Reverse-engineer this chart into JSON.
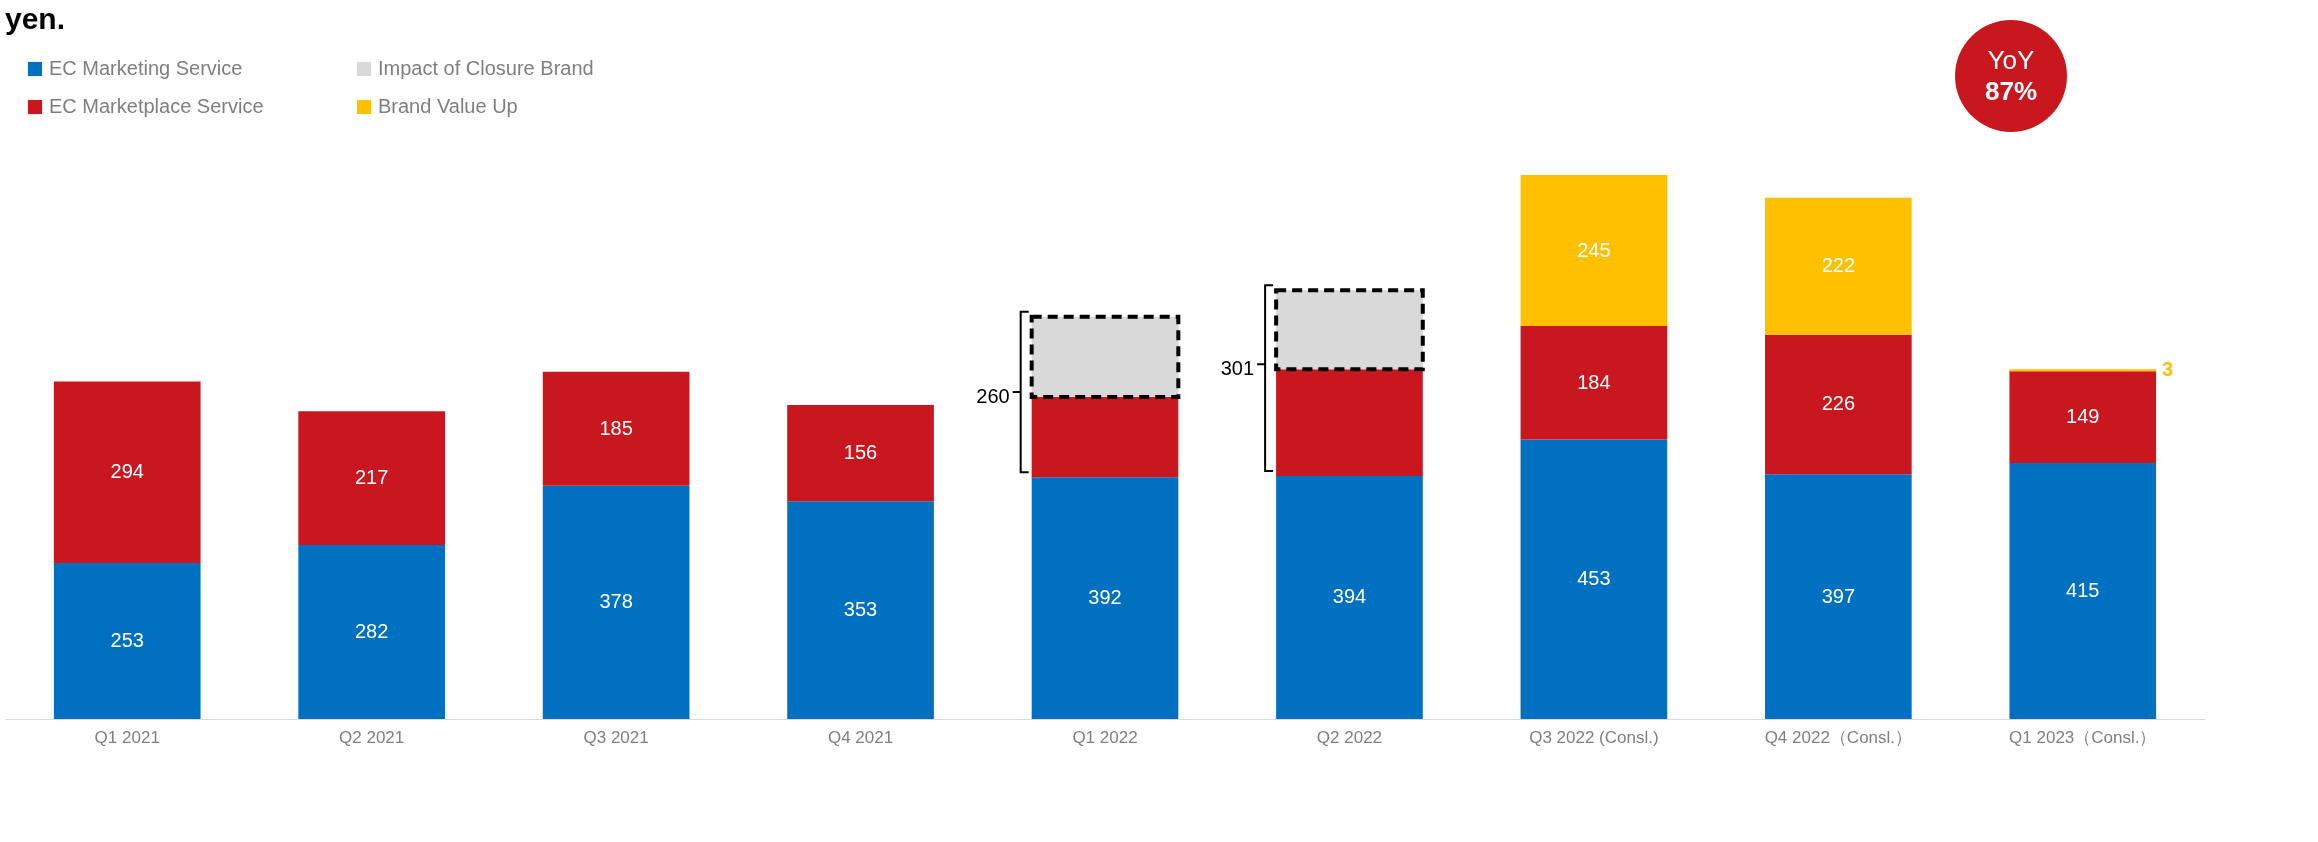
{
  "chart_data": {
    "type": "bar",
    "title": "yen.",
    "stacked": true,
    "legend": "top left",
    "categories": [
      "Q1 2021",
      "Q2 2021",
      "Q3 2021",
      "Q4 2021",
      "Q1 2022",
      "Q2 2022",
      "Q3 2022 (Consl.)",
      "Q4 2022（Consl.）",
      "Q1 2023（Consl.）"
    ],
    "series": [
      {
        "name": "EC Marketing Service",
        "color": "#0070c0",
        "values": [
          253,
          282,
          378,
          353,
          392,
          394,
          453,
          397,
          415
        ],
        "value_labels": [
          "253",
          "282",
          "378",
          "353",
          "392",
          "394",
          "453",
          "397",
          "415"
        ]
      },
      {
        "name": "EC Marketplace Service",
        "color": "#c8171e",
        "values": [
          294,
          217,
          185,
          156,
          130,
          173,
          184,
          226,
          149
        ],
        "value_labels": [
          "294",
          "217",
          "185",
          "156",
          null,
          null,
          "184",
          "226",
          "149"
        ]
      },
      {
        "name": "Impact of Closure Brand",
        "color": "#d9d9d9",
        "values": [
          null,
          null,
          null,
          null,
          130,
          128,
          null,
          null,
          null
        ]
      },
      {
        "name": "Brand Value Up",
        "color": "#ffc000",
        "values": [
          null,
          null,
          null,
          null,
          null,
          null,
          245,
          222,
          3
        ],
        "value_labels": [
          null,
          null,
          null,
          null,
          null,
          null,
          "245",
          "222",
          "3"
        ]
      }
    ],
    "annotations": [
      "260",
      "301",
      "YoY 87%"
    ]
  }
}
